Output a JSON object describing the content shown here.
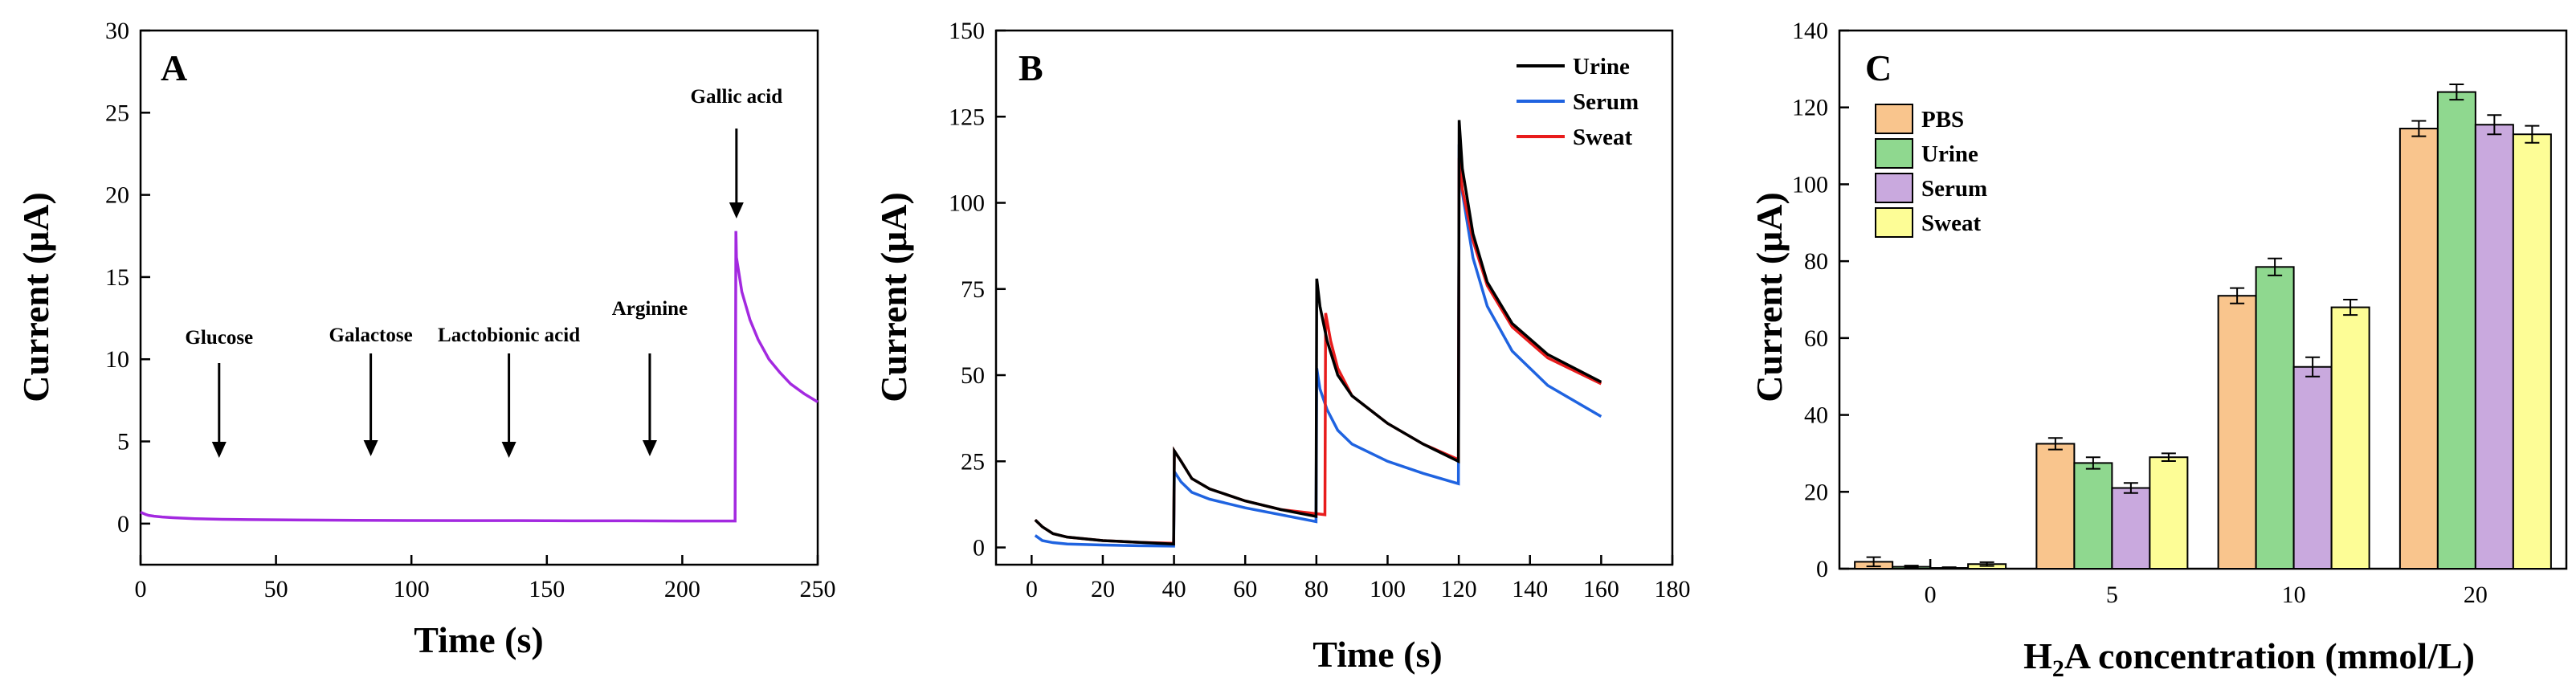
{
  "chart_data": [
    {
      "type": "line",
      "panel_label": "A",
      "xlabel": "Time (s)",
      "ylabel": "Current (μA)",
      "xlim": [
        0,
        250
      ],
      "ylim": [
        -2.5,
        30
      ],
      "xticks": [
        "0",
        "50",
        "100",
        "150",
        "200",
        "250"
      ],
      "yticks": [
        "0",
        "5",
        "10",
        "15",
        "20",
        "25",
        "30"
      ],
      "color": "#a329e0",
      "x": [
        0,
        1,
        2,
        3,
        5,
        8,
        12,
        20,
        30,
        40,
        60,
        80,
        100,
        120,
        140,
        160,
        180,
        200,
        219.5,
        219.8,
        220,
        222,
        225,
        228,
        232,
        236,
        240,
        245,
        250
      ],
      "y": [
        0.7,
        0.62,
        0.55,
        0.5,
        0.45,
        0.4,
        0.36,
        0.3,
        0.26,
        0.24,
        0.22,
        0.2,
        0.19,
        0.18,
        0.18,
        0.17,
        0.17,
        0.16,
        0.16,
        17.8,
        16.2,
        14.1,
        12.4,
        11.2,
        10.0,
        9.2,
        8.5,
        7.9,
        7.4
      ],
      "annotations": [
        {
          "label": "Glucose",
          "x": 29
        },
        {
          "label": "Galactose",
          "x": 85
        },
        {
          "label": "Lactobionic acid",
          "x": 136
        },
        {
          "label": "Arginine",
          "x": 188
        },
        {
          "label": "Gallic acid",
          "x": 220
        }
      ]
    },
    {
      "type": "line",
      "panel_label": "B",
      "xlabel": "Time (s)",
      "ylabel": "Current (μA)",
      "xlim": [
        -10,
        180
      ],
      "ylim": [
        -5,
        150
      ],
      "xticks": [
        "0",
        "20",
        "40",
        "60",
        "80",
        "100",
        "120",
        "140",
        "160",
        "180"
      ],
      "yticks": [
        "0",
        "25",
        "50",
        "75",
        "100",
        "125",
        "150"
      ],
      "series": [
        {
          "name": "Urine",
          "color": "#000000",
          "x": [
            1,
            3,
            6,
            10,
            20,
            30,
            39.9,
            40.1,
            42,
            45,
            50,
            60,
            70,
            79.9,
            80.1,
            81,
            83,
            86,
            90,
            100,
            110,
            119.9,
            120.1,
            121,
            124,
            128,
            135,
            145,
            160
          ],
          "y": [
            8,
            6,
            4,
            3,
            2,
            1.5,
            1,
            28,
            25,
            20,
            17,
            13.5,
            11,
            9,
            78,
            70,
            60,
            50,
            44,
            36,
            30,
            25,
            124,
            110,
            91,
            77,
            65,
            56,
            48
          ]
        },
        {
          "name": "Serum",
          "color": "#1f63e0",
          "x": [
            1,
            3,
            6,
            10,
            20,
            30,
            39.9,
            40.1,
            42,
            45,
            50,
            60,
            70,
            79.9,
            80.1,
            81,
            83,
            86,
            90,
            100,
            110,
            119.9,
            120.1,
            121,
            124,
            128,
            135,
            145,
            160
          ],
          "y": [
            3.5,
            2,
            1.4,
            1,
            0.7,
            0.5,
            0.4,
            22,
            19,
            16,
            14,
            11.5,
            9.5,
            7.5,
            52,
            46,
            40,
            34,
            30,
            25,
            21.5,
            18.5,
            117,
            103,
            84,
            70,
            57,
            47,
            38
          ]
        },
        {
          "name": "Sweat",
          "color": "#e81c1c",
          "x": [
            1,
            3,
            6,
            10,
            20,
            30,
            39.9,
            40.1,
            42,
            45,
            50,
            60,
            70,
            82.4,
            82.6,
            84,
            86,
            90,
            100,
            110,
            119.9,
            120.1,
            121,
            124,
            128,
            135,
            145,
            160
          ],
          "y": [
            8,
            6,
            4,
            3,
            2,
            1.5,
            1.2,
            28,
            25,
            20,
            17,
            13.5,
            11,
            9.5,
            68,
            60,
            52,
            44,
            36,
            30,
            25.5,
            113,
            104,
            89,
            76,
            64,
            55,
            47.5
          ]
        }
      ]
    },
    {
      "type": "bar",
      "panel_label": "C",
      "xlabel_parts": [
        "H",
        "2",
        "A  concentration (mmol/L)"
      ],
      "ylabel": "Current (μA)",
      "categories": [
        "0",
        "5",
        "10",
        "20"
      ],
      "ylim": [
        0,
        140
      ],
      "yticks": [
        "0",
        "20",
        "40",
        "60",
        "80",
        "100",
        "120",
        "140"
      ],
      "series": [
        {
          "name": "PBS",
          "color": "#f9c58d",
          "values": [
            1.8,
            32.5,
            71.0,
            114.5
          ],
          "errors": [
            1.2,
            1.5,
            2.0,
            2.0
          ]
        },
        {
          "name": "Urine",
          "color": "#8fd88f",
          "values": [
            0.5,
            27.5,
            78.5,
            124.0
          ],
          "errors": [
            0.3,
            1.5,
            2.2,
            2.0
          ]
        },
        {
          "name": "Serum",
          "color": "#c9a9de",
          "values": [
            0.2,
            21.0,
            52.5,
            115.5
          ],
          "errors": [
            0.2,
            1.3,
            2.5,
            2.5
          ]
        },
        {
          "name": "Sweat",
          "color": "#fdfd96",
          "values": [
            1.2,
            29.0,
            68.0,
            113.0
          ],
          "errors": [
            0.5,
            1.0,
            2.0,
            2.2
          ]
        }
      ]
    }
  ]
}
